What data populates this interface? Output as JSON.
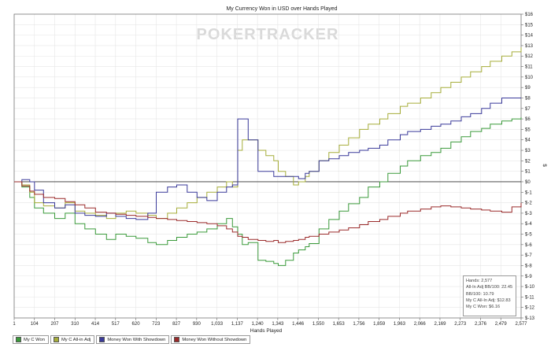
{
  "chart_data": {
    "type": "line",
    "title": "My Currency Won in USD over Hands Played",
    "watermark": "POKERTRACKER",
    "xlabel": "Hands Played",
    "ylabel": "$",
    "x_ticks": [
      "1",
      "104",
      "207",
      "310",
      "414",
      "517",
      "620",
      "723",
      "827",
      "930",
      "1,033",
      "1,137",
      "1,240",
      "1,343",
      "1,446",
      "1,550",
      "1,653",
      "1,756",
      "1,859",
      "1,963",
      "2,066",
      "2,169",
      "2,273",
      "2,376",
      "2,479",
      "2,577"
    ],
    "y_ticks": [
      "$16",
      "$15",
      "$14",
      "$13",
      "$12",
      "$11",
      "$10",
      "$9",
      "$8",
      "$7",
      "$6",
      "$5",
      "$4",
      "$3",
      "$2",
      "$1",
      "$0",
      "$-1",
      "$-2",
      "$-3",
      "$-4",
      "$-5",
      "$-6",
      "$-7",
      "$-8",
      "$-9",
      "$-10",
      "$-11",
      "$-12",
      "$-13"
    ],
    "xlim": [
      1,
      2577
    ],
    "ylim": [
      -13,
      16
    ],
    "grid": true,
    "legend_position": "bottom-left",
    "series": [
      {
        "name": "My C Won",
        "color": "#3a9a3a",
        "x": [
          1,
          40,
          80,
          104,
          150,
          207,
          260,
          310,
          360,
          414,
          470,
          517,
          570,
          620,
          680,
          723,
          780,
          827,
          880,
          930,
          980,
          1033,
          1080,
          1110,
          1137,
          1160,
          1190,
          1240,
          1280,
          1320,
          1343,
          1380,
          1420,
          1446,
          1480,
          1500,
          1550,
          1600,
          1653,
          1700,
          1756,
          1800,
          1859,
          1900,
          1963,
          2000,
          2066,
          2120,
          2169,
          2220,
          2273,
          2320,
          2376,
          2420,
          2479,
          2530,
          2577
        ],
        "y": [
          0,
          -0.5,
          -1.5,
          -2.5,
          -3,
          -3.5,
          -3,
          -4,
          -4.5,
          -5,
          -5.5,
          -5,
          -5.2,
          -5.4,
          -5.8,
          -6,
          -5.6,
          -5.3,
          -5,
          -4.8,
          -4.5,
          -4,
          -3.5,
          -4.3,
          -5,
          -6,
          -5.8,
          -7.5,
          -7.6,
          -7.8,
          -8,
          -7.5,
          -6.8,
          -6.5,
          -6.2,
          -5.9,
          -4.5,
          -3.6,
          -2.8,
          -2.1,
          -1.5,
          -0.5,
          0,
          0.8,
          1.5,
          2,
          2.5,
          2.8,
          3.2,
          3.8,
          4.3,
          4.8,
          5.1,
          5.5,
          5.8,
          6.0,
          6.16
        ]
      },
      {
        "name": "My C All-in Adj",
        "color": "#a6ad3a",
        "x": [
          1,
          40,
          80,
          104,
          150,
          207,
          260,
          310,
          360,
          414,
          470,
          517,
          570,
          620,
          680,
          723,
          780,
          827,
          880,
          930,
          980,
          1033,
          1080,
          1110,
          1137,
          1160,
          1190,
          1240,
          1280,
          1320,
          1343,
          1380,
          1420,
          1446,
          1480,
          1500,
          1550,
          1600,
          1653,
          1700,
          1756,
          1800,
          1859,
          1900,
          1963,
          2000,
          2066,
          2120,
          2169,
          2220,
          2273,
          2320,
          2376,
          2420,
          2479,
          2530,
          2577
        ],
        "y": [
          0,
          -0.3,
          -1,
          -2,
          -2.3,
          -2.5,
          -2,
          -2.8,
          -3,
          -3.2,
          -3.5,
          -3,
          -2.8,
          -3,
          -3.2,
          -3.5,
          -3,
          -2.5,
          -2,
          -1.5,
          -1,
          -0.5,
          0,
          -0.5,
          3,
          4,
          4,
          3,
          2.5,
          2,
          1,
          0.5,
          -0.3,
          0,
          0.5,
          1,
          2,
          2.8,
          3.5,
          4.2,
          5,
          5.5,
          6,
          6.5,
          7.2,
          7.5,
          8,
          8.5,
          9,
          9.5,
          10,
          10.5,
          11,
          11.5,
          12,
          12.4,
          12.83
        ]
      },
      {
        "name": "Money Won With Showdown",
        "color": "#3a3a9a",
        "x": [
          1,
          40,
          80,
          104,
          150,
          207,
          260,
          310,
          360,
          414,
          470,
          517,
          570,
          620,
          680,
          723,
          780,
          827,
          880,
          930,
          980,
          1033,
          1080,
          1110,
          1137,
          1160,
          1190,
          1240,
          1280,
          1320,
          1343,
          1380,
          1420,
          1446,
          1480,
          1500,
          1550,
          1600,
          1653,
          1700,
          1756,
          1800,
          1859,
          1900,
          1963,
          2000,
          2066,
          2120,
          2169,
          2220,
          2273,
          2320,
          2376,
          2420,
          2479,
          2530,
          2577
        ],
        "y": [
          0,
          0.2,
          0,
          -0.8,
          -2,
          -2.5,
          -2.2,
          -3,
          -3.2,
          -3.3,
          -3,
          -3.3,
          -3.5,
          -3.6,
          -3,
          -1,
          -0.5,
          -0.3,
          -1,
          -1.5,
          -1.8,
          -1,
          -0.5,
          -0.3,
          6,
          6,
          4,
          1,
          1,
          0.5,
          0.5,
          0.5,
          0.5,
          0.3,
          0.8,
          1,
          2,
          2.2,
          2.5,
          2.8,
          3,
          3.2,
          3.5,
          4,
          4.5,
          4.8,
          5,
          5.3,
          5.5,
          5.8,
          6.2,
          6.5,
          7,
          7.5,
          8,
          8,
          8
        ]
      },
      {
        "name": "Money Won Without Showdown",
        "color": "#9a2a2a",
        "x": [
          1,
          40,
          80,
          104,
          150,
          207,
          260,
          310,
          360,
          414,
          470,
          517,
          570,
          620,
          680,
          723,
          780,
          827,
          880,
          930,
          980,
          1033,
          1080,
          1110,
          1137,
          1160,
          1190,
          1240,
          1280,
          1320,
          1343,
          1380,
          1420,
          1446,
          1480,
          1500,
          1550,
          1600,
          1653,
          1700,
          1756,
          1800,
          1859,
          1900,
          1963,
          2000,
          2066,
          2120,
          2169,
          2220,
          2273,
          2320,
          2376,
          2420,
          2479,
          2530,
          2577
        ],
        "y": [
          0,
          -0.4,
          -0.9,
          -1.2,
          -1.5,
          -1.6,
          -1.9,
          -2.2,
          -2.5,
          -2.9,
          -3,
          -3.1,
          -3.2,
          -3.3,
          -3.4,
          -3.5,
          -3.6,
          -3.7,
          -3.8,
          -3.9,
          -4,
          -4.2,
          -4.5,
          -4.8,
          -5.2,
          -5.3,
          -5.5,
          -5.6,
          -5.7,
          -5.6,
          -5.8,
          -5.7,
          -5.6,
          -5.5,
          -5.3,
          -5.2,
          -5,
          -4.8,
          -4.6,
          -4.4,
          -4.1,
          -3.8,
          -3.6,
          -3.3,
          -3,
          -2.8,
          -2.6,
          -2.4,
          -2.3,
          -2.4,
          -2.5,
          -2.6,
          -2.7,
          -2.8,
          -2.9,
          -2.4,
          -2.0
        ]
      }
    ],
    "stats": [
      "Hands: 2,577",
      "All-In Adj BB/100: 22.45",
      "BB/100: 10.79",
      "My C All-In Adj: $12.83",
      "My C Won: $6.16"
    ]
  }
}
